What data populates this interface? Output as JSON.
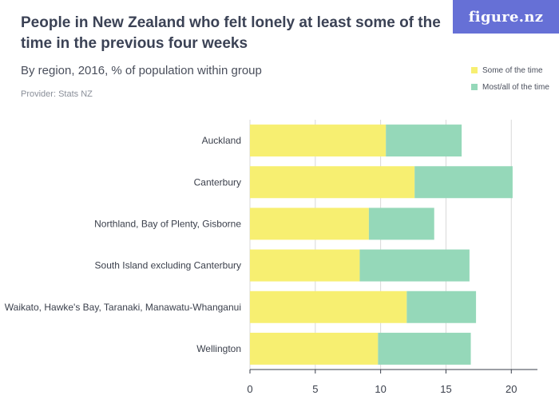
{
  "header": {
    "title": "People in New Zealand who felt lonely at least some of the time in the previous four weeks",
    "subtitle": "By region, 2016, % of population within group",
    "provider": "Provider: Stats NZ",
    "logo_text": "figure.nz"
  },
  "colors": {
    "some": "#f7ef71",
    "most": "#95d8b9",
    "logo_bg": "#6670d6",
    "axis": "#3a3f4b",
    "grid": "#d8d8d8"
  },
  "chart_data": {
    "type": "bar",
    "orientation": "horizontal",
    "stacked": true,
    "categories": [
      "Auckland",
      "Canterbury",
      "Northland, Bay of Plenty, Gisborne",
      "South Island excluding Canterbury",
      "Waikato, Hawke's Bay, Taranaki, Manawatu-Whanganui",
      "Wellington"
    ],
    "series": [
      {
        "name": "Some of the time",
        "values": [
          10.4,
          12.6,
          9.1,
          8.4,
          12.0,
          9.8
        ]
      },
      {
        "name": "Most/all of the time",
        "values": [
          5.8,
          7.5,
          5.0,
          8.4,
          5.3,
          7.1
        ]
      }
    ],
    "xlim": [
      0,
      22
    ],
    "xticks": [
      0,
      5,
      10,
      15,
      20
    ],
    "legend_position": "top-right",
    "grid": "vertical"
  }
}
